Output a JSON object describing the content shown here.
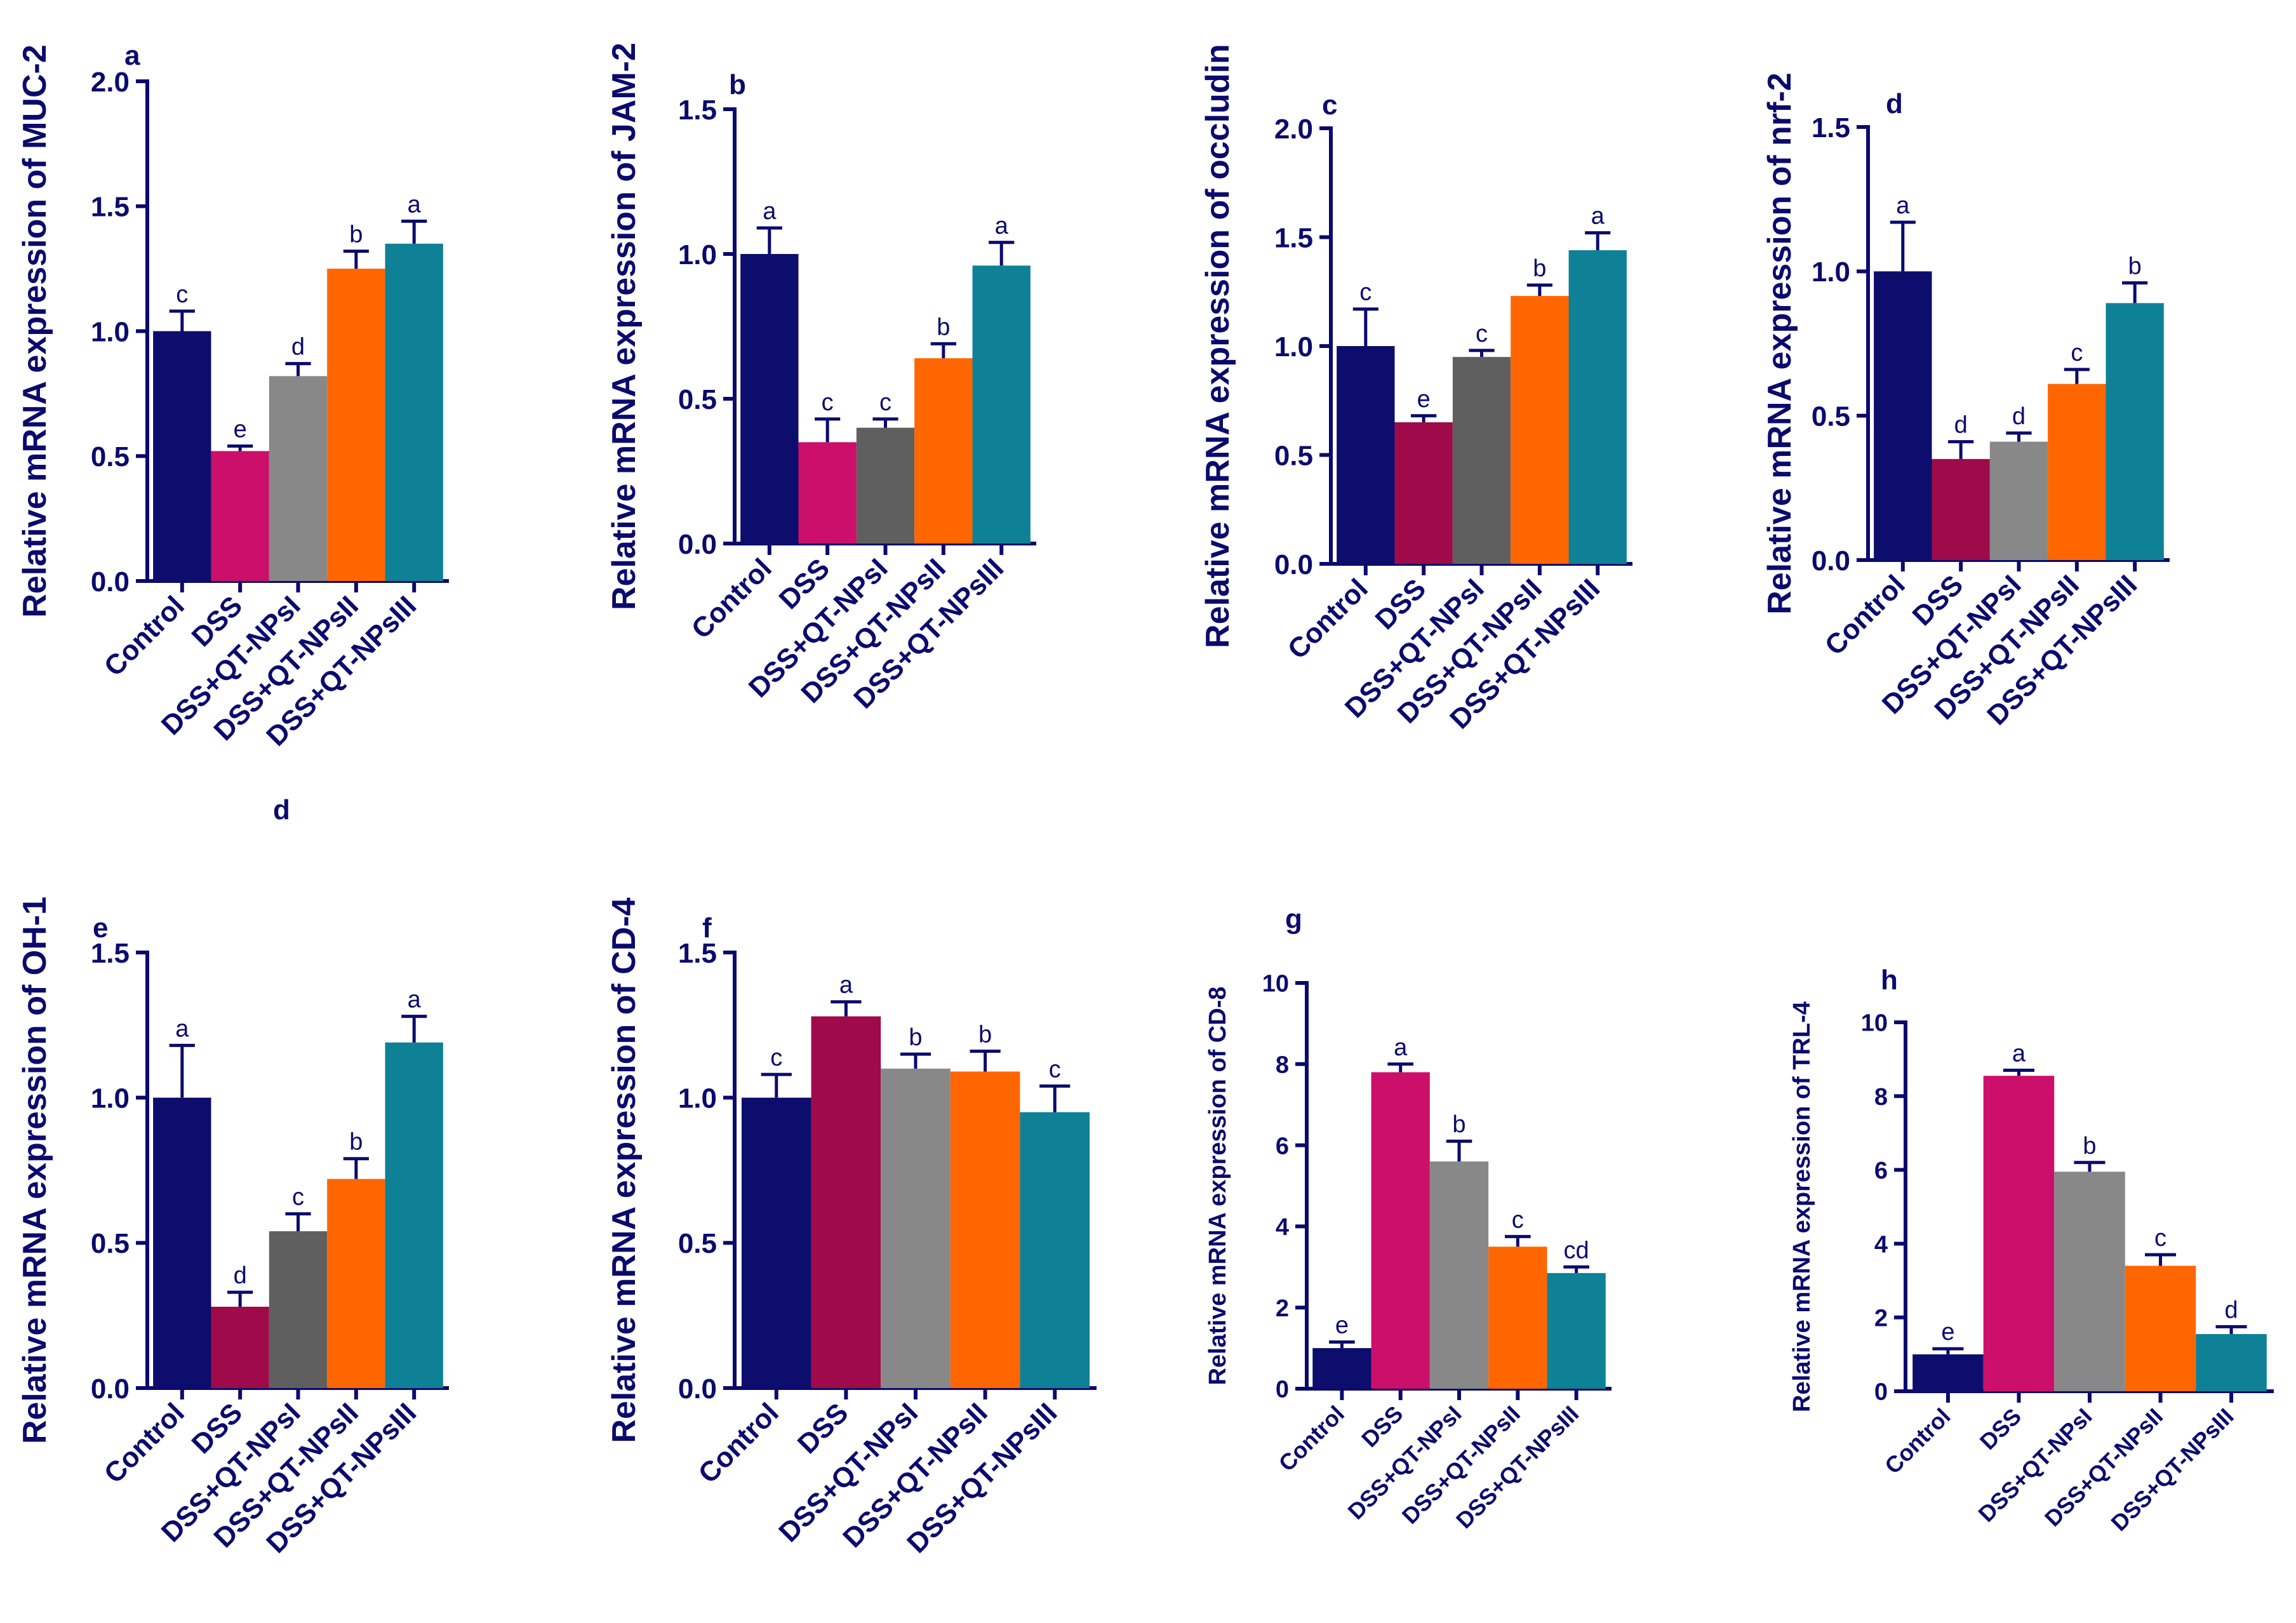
{
  "chart_data": [
    {
      "panel": "a",
      "type": "bar",
      "ylabel": "Relative mRNA expression of MUC-2",
      "categories": [
        "Control",
        "DSS",
        "DSS+QT-NPsI",
        "DSS+QT-NPsII",
        "DSS+QT-NPsIII"
      ],
      "values": [
        1.0,
        0.52,
        0.82,
        1.25,
        1.35
      ],
      "errors": [
        0.08,
        0.02,
        0.05,
        0.07,
        0.09
      ],
      "significance": [
        "c",
        "e",
        "d",
        "b",
        "a"
      ],
      "colors": [
        "#0d0d6e",
        "#cc0f6a",
        "#888888",
        "#ff6600",
        "#0e8197"
      ],
      "ylim": [
        0,
        2.0
      ],
      "yticks": [
        "0.0",
        "0.5",
        "1.0",
        "1.5",
        "2.0"
      ],
      "extra_label": "d"
    },
    {
      "panel": "b",
      "type": "bar",
      "ylabel": "Relative mRNA expression of JAM-2",
      "categories": [
        "Control",
        "DSS",
        "DSS+QT-NPsI",
        "DSS+QT-NPsII",
        "DSS+QT-NPsIII"
      ],
      "values": [
        1.0,
        0.35,
        0.4,
        0.64,
        0.96
      ],
      "errors": [
        0.09,
        0.08,
        0.03,
        0.05,
        0.08
      ],
      "significance": [
        "a",
        "c",
        "c",
        "b",
        "a"
      ],
      "colors": [
        "#0d0d6e",
        "#cc0f6a",
        "#5f5f5f",
        "#ff6600",
        "#0e8197"
      ],
      "ylim": [
        0,
        1.5
      ],
      "yticks": [
        "0.0",
        "0.5",
        "1.0",
        "1.5"
      ]
    },
    {
      "panel": "c",
      "type": "bar",
      "ylabel": "Relative mRNA expression of occludin",
      "categories": [
        "Control",
        "DSS",
        "DSS+QT-NPsI",
        "DSS+QT-NPsII",
        "DSS+QT-NPsIII"
      ],
      "values": [
        1.0,
        0.65,
        0.95,
        1.23,
        1.44
      ],
      "errors": [
        0.17,
        0.03,
        0.03,
        0.05,
        0.08
      ],
      "significance": [
        "c",
        "e",
        "c",
        "b",
        "a"
      ],
      "colors": [
        "#0d0d6e",
        "#9e0a4a",
        "#5f5f5f",
        "#ff6600",
        "#0e8197"
      ],
      "ylim": [
        0,
        2.0
      ],
      "yticks": [
        "0.0",
        "0.5",
        "1.0",
        "1.5",
        "2.0"
      ]
    },
    {
      "panel": "d",
      "type": "bar",
      "ylabel": "Relative mRNA expression of nrf-2",
      "categories": [
        "Control",
        "DSS",
        "DSS+QT-NPsI",
        "DSS+QT-NPsII",
        "DSS+QT-NPsIII"
      ],
      "values": [
        1.0,
        0.35,
        0.41,
        0.61,
        0.89
      ],
      "errors": [
        0.17,
        0.06,
        0.03,
        0.05,
        0.07
      ],
      "significance": [
        "a",
        "d",
        "d",
        "c",
        "b"
      ],
      "colors": [
        "#0d0d6e",
        "#9e0a4a",
        "#888888",
        "#ff6600",
        "#0e8197"
      ],
      "ylim": [
        0,
        1.5
      ],
      "yticks": [
        "0.0",
        "0.5",
        "1.0",
        "1.5"
      ]
    },
    {
      "panel": "e",
      "type": "bar",
      "ylabel": "Relative mRNA expression of OH-1",
      "categories": [
        "Control",
        "DSS",
        "DSS+QT-NPsI",
        "DSS+QT-NPsII",
        "DSS+QT-NPsIII"
      ],
      "values": [
        1.0,
        0.28,
        0.54,
        0.72,
        1.19
      ],
      "errors": [
        0.18,
        0.05,
        0.06,
        0.07,
        0.09
      ],
      "significance": [
        "a",
        "d",
        "c",
        "b",
        "a"
      ],
      "colors": [
        "#0d0d6e",
        "#9e0a4a",
        "#5f5f5f",
        "#ff6600",
        "#0e8197"
      ],
      "ylim": [
        0,
        1.5
      ],
      "yticks": [
        "0.0",
        "0.5",
        "1.0",
        "1.5"
      ]
    },
    {
      "panel": "f",
      "type": "bar",
      "ylabel": "Relative mRNA expression of CD-4",
      "categories": [
        "Control",
        "DSS",
        "DSS+QT-NPsI",
        "DSS+QT-NPsII",
        "DSS+QT-NPsIII"
      ],
      "values": [
        1.0,
        1.28,
        1.1,
        1.09,
        0.95
      ],
      "errors": [
        0.08,
        0.05,
        0.05,
        0.07,
        0.09
      ],
      "significance": [
        "c",
        "a",
        "b",
        "b",
        "c"
      ],
      "colors": [
        "#0d0d6e",
        "#9e0a4a",
        "#888888",
        "#ff6600",
        "#0e8197"
      ],
      "ylim": [
        0,
        1.5
      ],
      "yticks": [
        "0.0",
        "0.5",
        "1.0",
        "1.5"
      ]
    },
    {
      "panel": "g",
      "type": "bar",
      "ylabel": "Relative mRNA expression of CD-8",
      "categories": [
        "Control",
        "DSS",
        "DSS+QT-NPsI",
        "DSS+QT-NPsII",
        "DSS+QT-NPsIII"
      ],
      "values": [
        1.0,
        7.8,
        5.6,
        3.5,
        2.85
      ],
      "errors": [
        0.15,
        0.2,
        0.5,
        0.25,
        0.15
      ],
      "significance": [
        "e",
        "a",
        "b",
        "c",
        "cd"
      ],
      "colors": [
        "#0d0d6e",
        "#cc0f6a",
        "#888888",
        "#ff6600",
        "#0e8197"
      ],
      "ylim": [
        0,
        10
      ],
      "yticks": [
        "0",
        "2",
        "4",
        "6",
        "8",
        "10"
      ]
    },
    {
      "panel": "h",
      "type": "bar",
      "ylabel": "Relative mRNA expression of TRL-4",
      "categories": [
        "Control",
        "DSS",
        "DSS+QT-NPsI",
        "DSS+QT-NPsII",
        "DSS+QT-NPsIII"
      ],
      "values": [
        1.0,
        8.55,
        5.95,
        3.4,
        1.55
      ],
      "errors": [
        0.15,
        0.15,
        0.25,
        0.3,
        0.2
      ],
      "significance": [
        "e",
        "a",
        "b",
        "c",
        "d"
      ],
      "colors": [
        "#0d0d6e",
        "#cc0f6a",
        "#888888",
        "#ff6600",
        "#0e8197"
      ],
      "ylim": [
        0,
        10
      ],
      "yticks": [
        "0",
        "2",
        "4",
        "6",
        "8",
        "10"
      ]
    }
  ]
}
